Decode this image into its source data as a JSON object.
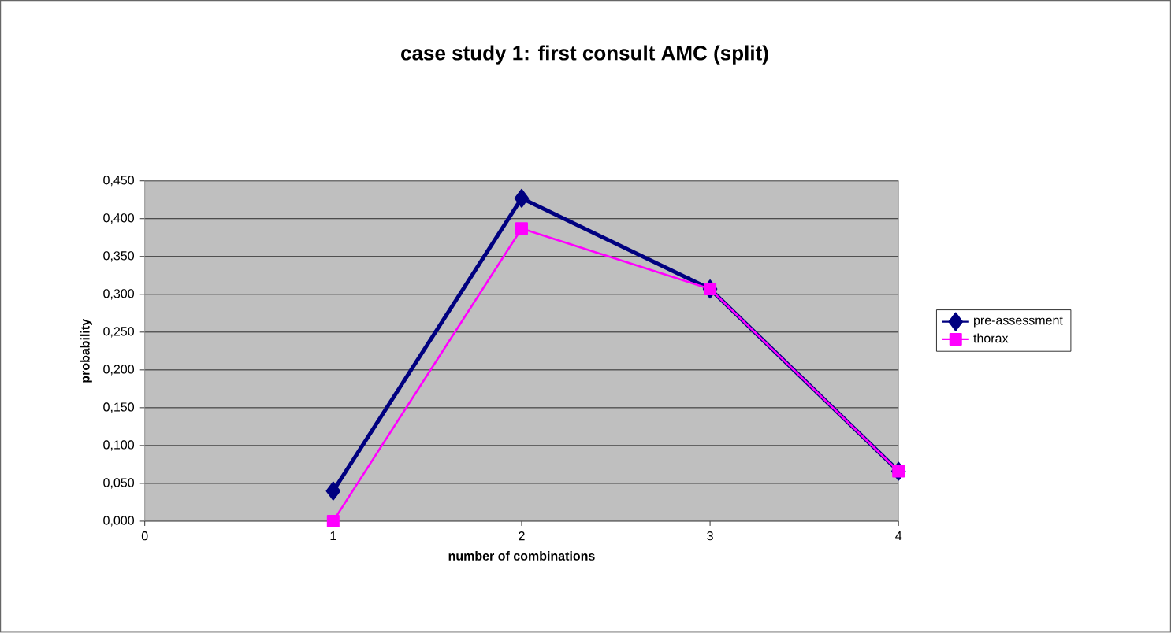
{
  "chart_data": {
    "type": "line",
    "title": "case study 1: first consult AMC (split)",
    "xlabel": "number of combinations",
    "ylabel": "probability",
    "x": [
      1,
      2,
      3,
      4
    ],
    "series": [
      {
        "name": "pre-assessment",
        "color": "#000080",
        "marker": "diamond",
        "values": [
          0.04,
          0.427,
          0.307,
          0.066
        ]
      },
      {
        "name": "thorax",
        "color": "#ff00ff",
        "marker": "square",
        "values": [
          0.0,
          0.387,
          0.307,
          0.066
        ]
      }
    ],
    "xlim": [
      0,
      4
    ],
    "xticks": [
      0,
      1,
      2,
      3,
      4
    ],
    "ylim": [
      0,
      0.45
    ],
    "yticks": [
      {
        "value": 0,
        "label": "0,000"
      },
      {
        "value": 0.05,
        "label": "0,050"
      },
      {
        "value": 0.1,
        "label": "0,100"
      },
      {
        "value": 0.15,
        "label": "0,150"
      },
      {
        "value": 0.2,
        "label": "0,200"
      },
      {
        "value": 0.25,
        "label": "0,250"
      },
      {
        "value": 0.3,
        "label": "0,300"
      },
      {
        "value": 0.35,
        "label": "0,350"
      },
      {
        "value": 0.4,
        "label": "0,400"
      },
      {
        "value": 0.45,
        "label": "0,450"
      }
    ],
    "grid": "y",
    "legend": "right",
    "line_style": "solid"
  }
}
